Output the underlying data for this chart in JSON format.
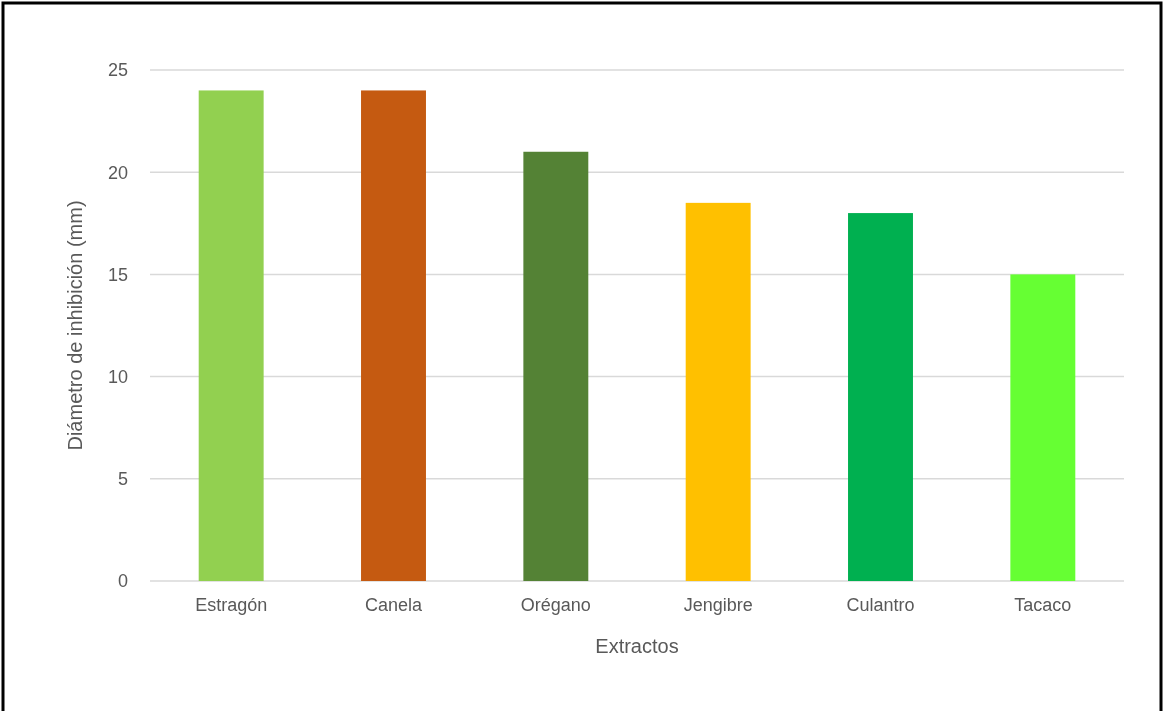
{
  "chart_data": {
    "type": "bar",
    "xlabel": "Extractos",
    "ylabel": "Diámetro de inhibición (mm)",
    "categories": [
      "Estragón",
      "Canela",
      "Orégano",
      "Jengibre",
      "Culantro",
      "Tacaco"
    ],
    "values": [
      24,
      24,
      21,
      18.5,
      18,
      15
    ],
    "colors": [
      "#92d050",
      "#c55a11",
      "#548235",
      "#ffc000",
      "#00b050",
      "#66ff33"
    ],
    "ylim": [
      0,
      25
    ],
    "yticks": [
      0,
      5,
      10,
      15,
      20,
      25
    ],
    "grid": "y"
  }
}
